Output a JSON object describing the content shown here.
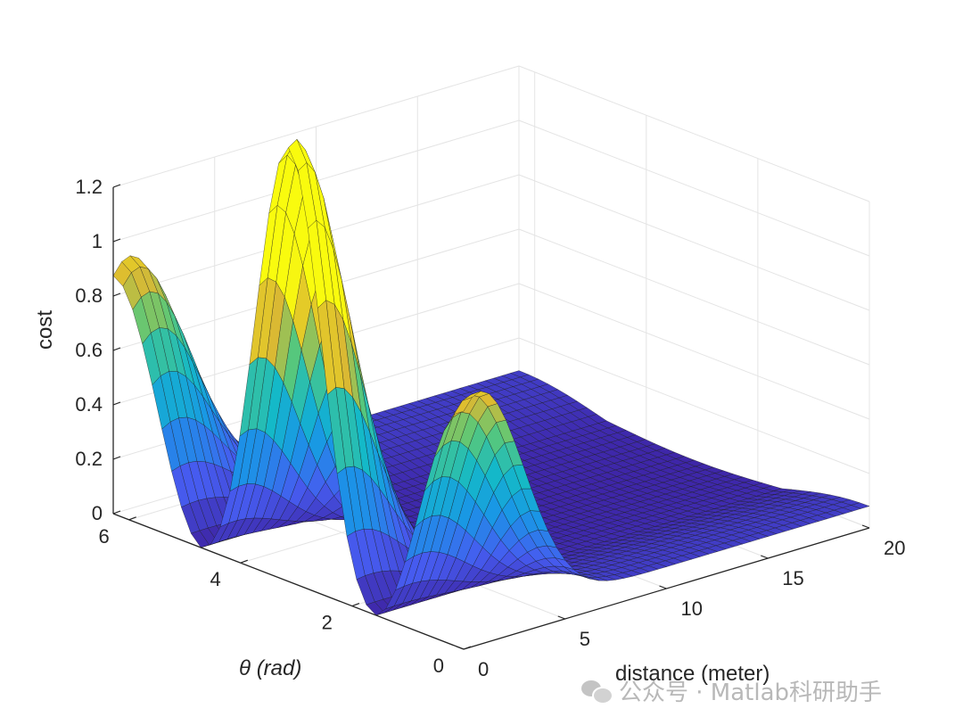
{
  "chart_data": {
    "type": "surface",
    "title": "",
    "xlabel": "distance (meter)",
    "ylabel": "θ (rad)",
    "zlabel": "cost",
    "xlim": [
      0,
      20
    ],
    "ylim": [
      0,
      6.283
    ],
    "zlim": [
      0,
      1.2
    ],
    "xticks": [
      "0",
      "5",
      "10",
      "15",
      "20"
    ],
    "yticks": [
      "0",
      "2",
      "4",
      "6"
    ],
    "zticks": [
      "0",
      "0.2",
      "0.4",
      "0.6",
      "0.8",
      "1",
      "1.2"
    ],
    "grid": "on",
    "colormap": "parula",
    "surface_samples": {
      "description_of_axes": "cost sampled along distance at theta = 0 / 2*pi edge and at theta = pi",
      "distance": [
        0,
        1,
        2,
        3,
        4,
        5,
        6,
        8,
        10,
        12,
        14,
        16,
        18,
        20
      ],
      "cost_at_theta_edge": [
        0.82,
        0.8,
        0.78,
        0.74,
        0.66,
        0.55,
        0.42,
        0.22,
        0.1,
        0.05,
        0.03,
        0.02,
        0.02,
        0.02
      ],
      "cost_at_theta_pi": [
        1.06,
        0.85,
        0.4,
        0.1,
        0.01,
        0.0,
        0.0,
        0.0,
        0.0,
        0.0,
        0.0,
        0.0,
        0.0,
        0.0
      ]
    }
  },
  "watermark": {
    "icon": "wechat-icon",
    "text": "公众号 · Matlab科研助手"
  }
}
